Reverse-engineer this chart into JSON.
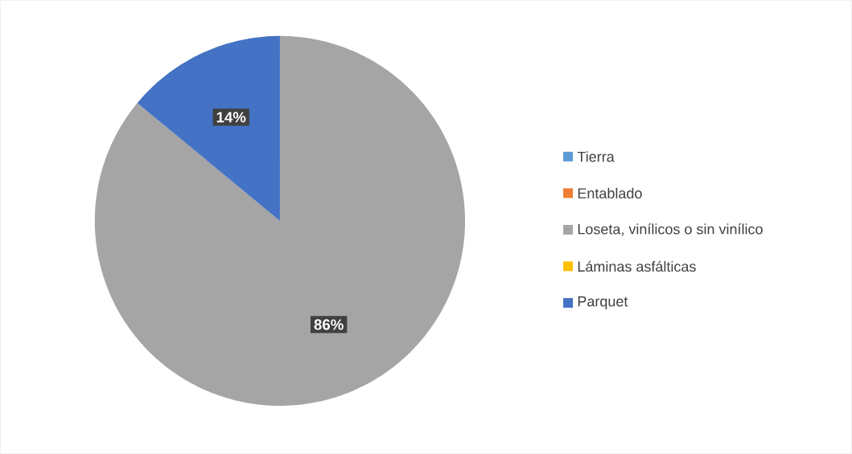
{
  "chart_data": {
    "type": "pie",
    "categories": [
      "Tierra",
      "Entablado",
      "Loseta, vinílicos o sin vinílico",
      "Láminas asfálticas",
      "Parquet"
    ],
    "values": [
      0,
      0,
      86,
      0,
      14
    ],
    "colors": [
      "#5b9bd5",
      "#ed7d31",
      "#a5a5a5",
      "#ffc000",
      "#4472c4"
    ],
    "value_labels": [
      null,
      null,
      "86%",
      null,
      "14%"
    ],
    "legend": "right"
  }
}
